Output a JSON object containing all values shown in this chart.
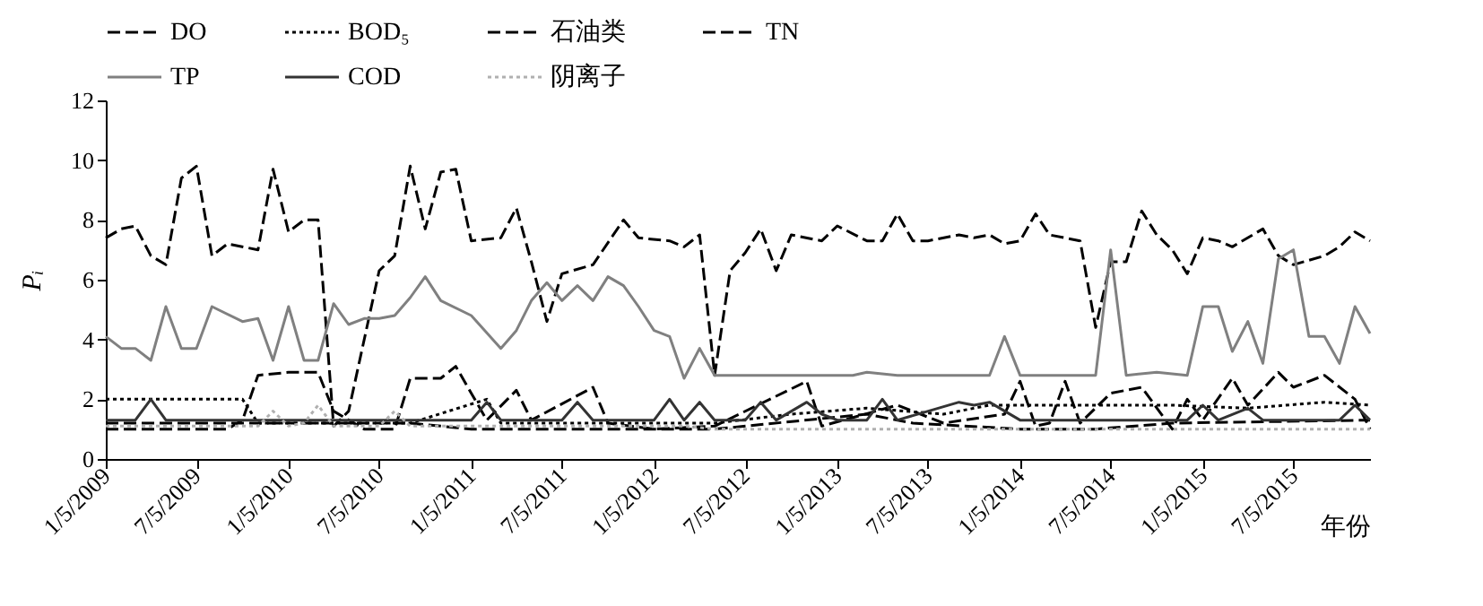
{
  "chart_data": {
    "type": "line",
    "xlabel": "年份",
    "ylabel": "Pᵢ",
    "xlim": [
      "2009-01",
      "2015-12"
    ],
    "xticks": [
      {
        "value": "2009-01",
        "label": "1/5/2009"
      },
      {
        "value": "2009-07",
        "label": "7/5/2009"
      },
      {
        "value": "2010-01",
        "label": "1/5/2010"
      },
      {
        "value": "2010-07",
        "label": "7/5/2010"
      },
      {
        "value": "2011-01",
        "label": "1/5/2011"
      },
      {
        "value": "2011-07",
        "label": "7/5/2011"
      },
      {
        "value": "2012-01",
        "label": "1/5/2012"
      },
      {
        "value": "2012-07",
        "label": "7/5/2012"
      },
      {
        "value": "2013-01",
        "label": "1/5/2013"
      },
      {
        "value": "2013-07",
        "label": "7/5/2013"
      },
      {
        "value": "2014-01",
        "label": "1/5/2014"
      },
      {
        "value": "2014-07",
        "label": "7/5/2014"
      },
      {
        "value": "2015-01",
        "label": "1/5/2015"
      },
      {
        "value": "2015-07",
        "label": "7/5/2015"
      }
    ],
    "ylim": [
      0,
      12
    ],
    "yticks": [
      0,
      2,
      4,
      6,
      8,
      10,
      12
    ],
    "grid": false,
    "legend": "top",
    "marker": "none",
    "series": [
      {
        "name": "DO",
        "color": "#000000",
        "line_style": "dashed",
        "x": [
          "2009-01",
          "2009-09",
          "2009-10",
          "2009-11",
          "2010-01",
          "2010-03",
          "2010-04",
          "2010-06",
          "2010-08",
          "2010-09",
          "2010-11",
          "2010-12",
          "2011-01",
          "2011-02",
          "2011-04",
          "2011-05",
          "2011-09",
          "2011-10",
          "2012-01",
          "2012-05",
          "2012-11",
          "2012-12",
          "2013-05",
          "2013-08",
          "2013-12",
          "2014-01",
          "2014-02",
          "2014-03",
          "2014-04",
          "2014-05",
          "2014-07",
          "2014-09",
          "2014-11",
          "2014-12",
          "2015-01",
          "2015-03",
          "2015-04",
          "2015-06",
          "2015-07",
          "2015-09",
          "2015-11",
          "2015-12"
        ],
        "values": [
          1.0,
          1.0,
          1.3,
          2.8,
          2.9,
          2.9,
          1.6,
          1.0,
          1.0,
          2.7,
          2.7,
          3.1,
          2.2,
          1.3,
          2.3,
          1.3,
          2.4,
          1.2,
          1.0,
          1.1,
          2.6,
          1.1,
          1.8,
          1.2,
          1.5,
          2.6,
          1.1,
          1.2,
          2.6,
          1.2,
          2.2,
          2.4,
          1.0,
          2.0,
          1.3,
          2.7,
          1.8,
          2.9,
          2.4,
          2.8,
          2.0,
          1.0
        ]
      },
      {
        "name": "BOD₅",
        "color": "#000000",
        "line_style": "dotted",
        "x": [
          "2009-01",
          "2009-10",
          "2009-11",
          "2010-09",
          "2011-02",
          "2011-03",
          "2012-05",
          "2012-10",
          "2013-03",
          "2013-08",
          "2013-11",
          "2014-06",
          "2014-11",
          "2015-04",
          "2015-09",
          "2015-12"
        ],
        "values": [
          2.0,
          2.0,
          1.2,
          1.2,
          2.0,
          1.2,
          1.2,
          1.5,
          1.7,
          1.5,
          1.8,
          1.8,
          1.8,
          1.7,
          1.9,
          1.8
        ]
      },
      {
        "name": "石油类",
        "color": "#000000",
        "line_style": "dashed",
        "x": [
          "2009-01",
          "2010-09",
          "2011-01",
          "2012-05",
          "2013-03",
          "2013-06",
          "2014-01",
          "2014-06",
          "2014-11",
          "2015-12"
        ],
        "values": [
          1.2,
          1.2,
          1.0,
          1.0,
          1.5,
          1.2,
          1.0,
          1.0,
          1.2,
          1.3
        ]
      },
      {
        "name": "TN",
        "color": "#000000",
        "line_style": "dashed",
        "x": [
          "2009-01",
          "2009-02",
          "2009-03",
          "2009-04",
          "2009-05",
          "2009-06",
          "2009-07",
          "2009-08",
          "2009-09",
          "2009-11",
          "2009-12",
          "2010-01",
          "2010-02",
          "2010-03",
          "2010-04",
          "2010-05",
          "2010-07",
          "2010-08",
          "2010-09",
          "2010-10",
          "2010-11",
          "2010-12",
          "2011-01",
          "2011-03",
          "2011-04",
          "2011-05",
          "2011-06",
          "2011-07",
          "2011-09",
          "2011-11",
          "2011-12",
          "2012-02",
          "2012-03",
          "2012-04",
          "2012-05",
          "2012-06",
          "2012-07",
          "2012-08",
          "2012-09",
          "2012-10",
          "2012-12",
          "2013-01",
          "2013-03",
          "2013-04",
          "2013-05",
          "2013-06",
          "2013-07",
          "2013-09",
          "2013-10",
          "2013-11",
          "2013-12",
          "2014-01",
          "2014-02",
          "2014-03",
          "2014-05",
          "2014-06",
          "2014-07",
          "2014-08",
          "2014-09",
          "2014-10",
          "2014-11",
          "2014-12",
          "2015-01",
          "2015-02",
          "2015-03",
          "2015-05",
          "2015-06",
          "2015-07",
          "2015-09",
          "2015-10",
          "2015-11",
          "2015-12"
        ],
        "values": [
          7.4,
          7.7,
          7.8,
          6.8,
          6.5,
          9.4,
          9.8,
          6.8,
          7.2,
          7.0,
          9.7,
          7.6,
          8.0,
          8.0,
          1.1,
          1.6,
          6.3,
          6.8,
          9.8,
          7.7,
          9.6,
          9.7,
          7.3,
          7.4,
          8.4,
          6.6,
          4.6,
          6.2,
          6.5,
          8.0,
          7.4,
          7.3,
          7.1,
          7.5,
          2.8,
          6.3,
          6.9,
          7.7,
          6.3,
          7.5,
          7.3,
          7.8,
          7.3,
          7.3,
          8.2,
          7.3,
          7.3,
          7.5,
          7.4,
          7.5,
          7.2,
          7.3,
          8.2,
          7.5,
          7.3,
          4.4,
          6.6,
          6.6,
          8.3,
          7.5,
          7.0,
          6.2,
          7.4,
          7.3,
          7.1,
          7.7,
          6.8,
          6.5,
          6.8,
          7.1,
          7.6,
          7.3
        ]
      },
      {
        "name": "TP",
        "color": "#808080",
        "line_style": "solid",
        "x": [
          "2009-01",
          "2009-02",
          "2009-03",
          "2009-04",
          "2009-05",
          "2009-06",
          "2009-07",
          "2009-08",
          "2009-10",
          "2009-11",
          "2009-12",
          "2010-01",
          "2010-02",
          "2010-03",
          "2010-04",
          "2010-05",
          "2010-06",
          "2010-07",
          "2010-08",
          "2010-09",
          "2010-10",
          "2010-11",
          "2011-01",
          "2011-03",
          "2011-04",
          "2011-05",
          "2011-06",
          "2011-07",
          "2011-08",
          "2011-09",
          "2011-10",
          "2011-11",
          "2011-12",
          "2012-01",
          "2012-02",
          "2012-03",
          "2012-04",
          "2012-05",
          "2013-02",
          "2013-03",
          "2013-05",
          "2013-11",
          "2013-12",
          "2014-01",
          "2014-06",
          "2014-07",
          "2014-08",
          "2014-10",
          "2014-12",
          "2015-01",
          "2015-02",
          "2015-03",
          "2015-04",
          "2015-05",
          "2015-06",
          "2015-07",
          "2015-08",
          "2015-09",
          "2015-10",
          "2015-11",
          "2015-12"
        ],
        "values": [
          4.1,
          3.7,
          3.7,
          3.3,
          5.1,
          3.7,
          3.7,
          5.1,
          4.6,
          4.7,
          3.3,
          5.1,
          3.3,
          3.3,
          5.2,
          4.5,
          4.7,
          4.7,
          4.8,
          5.4,
          6.1,
          5.3,
          4.8,
          3.7,
          4.3,
          5.3,
          5.9,
          5.3,
          5.8,
          5.3,
          6.1,
          5.8,
          5.1,
          4.3,
          4.1,
          2.7,
          3.7,
          2.8,
          2.8,
          2.9,
          2.8,
          2.8,
          4.1,
          2.8,
          2.8,
          7.0,
          2.8,
          2.9,
          2.8,
          5.1,
          5.1,
          3.6,
          4.6,
          3.2,
          6.7,
          7.0,
          4.1,
          4.1,
          3.2,
          5.1,
          4.2
        ]
      },
      {
        "name": "COD",
        "color": "#333333",
        "line_style": "solid",
        "x": [
          "2009-01",
          "2009-03",
          "2009-04",
          "2009-05",
          "2011-01",
          "2011-02",
          "2011-03",
          "2011-05",
          "2011-07",
          "2011-08",
          "2011-09",
          "2012-01",
          "2012-02",
          "2012-03",
          "2012-04",
          "2012-05",
          "2012-07",
          "2012-08",
          "2012-09",
          "2012-11",
          "2012-12",
          "2013-01",
          "2013-03",
          "2013-04",
          "2013-05",
          "2013-09",
          "2013-10",
          "2013-11",
          "2014-01",
          "2014-12",
          "2015-01",
          "2015-02",
          "2015-04",
          "2015-05",
          "2015-10",
          "2015-11",
          "2015-12"
        ],
        "values": [
          1.3,
          1.3,
          2.0,
          1.3,
          1.3,
          1.9,
          1.3,
          1.3,
          1.3,
          1.9,
          1.3,
          1.3,
          2.0,
          1.3,
          1.9,
          1.3,
          1.3,
          1.9,
          1.3,
          1.9,
          1.5,
          1.3,
          1.3,
          2.0,
          1.3,
          1.9,
          1.8,
          1.9,
          1.3,
          1.3,
          1.8,
          1.3,
          1.7,
          1.3,
          1.3,
          1.8,
          1.3
        ]
      },
      {
        "name": "阴离子",
        "color": "#b0b0b0",
        "line_style": "dotted",
        "x": [
          "2009-01",
          "2009-11",
          "2009-12",
          "2010-01",
          "2010-02",
          "2010-03",
          "2010-04",
          "2010-07",
          "2010-08",
          "2010-09",
          "2012-03",
          "2012-05",
          "2015-12"
        ],
        "values": [
          1.1,
          1.1,
          1.6,
          1.1,
          1.2,
          1.8,
          1.1,
          1.1,
          1.6,
          1.1,
          1.1,
          1.0,
          1.0
        ]
      }
    ]
  }
}
